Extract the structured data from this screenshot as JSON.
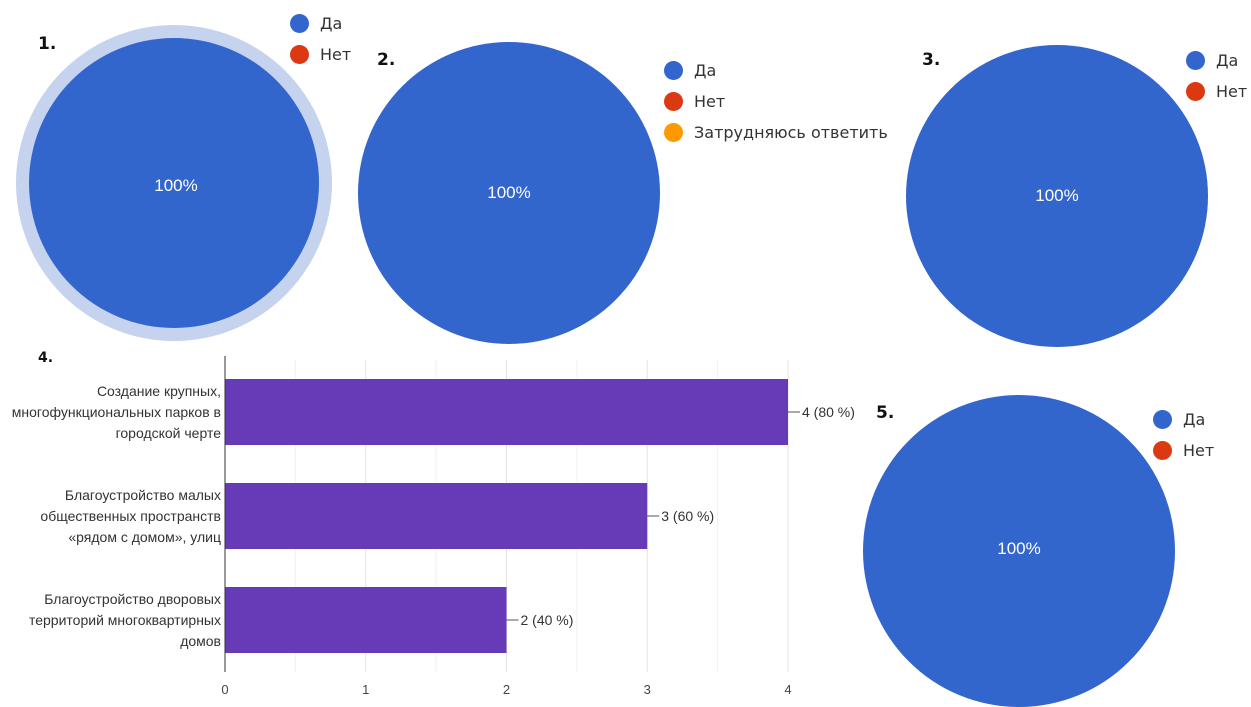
{
  "chart_data": [
    {
      "type": "pie",
      "number": "1.",
      "categories": [
        "Да",
        "Нет"
      ],
      "values": [
        100,
        0
      ],
      "data_labels": [
        "100%"
      ],
      "colors": [
        "#3366cc",
        "#dc3912"
      ],
      "legend_position": "top-right"
    },
    {
      "type": "pie",
      "number": "2.",
      "categories": [
        "Да",
        "Нет",
        "Затрудняюсь ответить"
      ],
      "values": [
        100,
        0,
        0
      ],
      "data_labels": [
        "100%"
      ],
      "colors": [
        "#3366cc",
        "#dc3912",
        "#ff9900"
      ],
      "legend_position": "right"
    },
    {
      "type": "pie",
      "number": "3.",
      "categories": [
        "Да",
        "Нет"
      ],
      "values": [
        100,
        0
      ],
      "data_labels": [
        "100%"
      ],
      "colors": [
        "#3366cc",
        "#dc3912"
      ],
      "legend_position": "top-right"
    },
    {
      "type": "bar",
      "orientation": "horizontal",
      "number": "4.",
      "categories": [
        [
          "Создание крупных,",
          "многофункциональных парков в",
          "городской черте"
        ],
        [
          "Благоустройство малых",
          "общественных пространств",
          "«рядом с домом», улиц"
        ],
        [
          "Благоустройство дворовых",
          "территорий многоквартирных",
          "домов"
        ]
      ],
      "values": [
        4,
        3,
        2
      ],
      "data_labels": [
        "4 (80 %)",
        "3 (60 %)",
        "2 (40 %)"
      ],
      "xlim": [
        0,
        4
      ],
      "x_ticks": [
        "0",
        "1",
        "2",
        "3",
        "4"
      ],
      "grid": true,
      "bar_color": "#673ab7"
    },
    {
      "type": "pie",
      "number": "5.",
      "categories": [
        "Да",
        "Нет"
      ],
      "values": [
        100,
        0
      ],
      "data_labels": [
        "100%"
      ],
      "colors": [
        "#3366cc",
        "#dc3912"
      ],
      "legend_position": "top-right"
    }
  ]
}
